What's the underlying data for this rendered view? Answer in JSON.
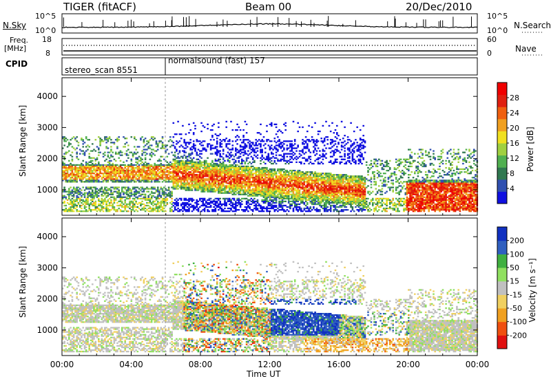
{
  "header": {
    "radar": "TIGER (fitACF)",
    "beam": "Beam 00",
    "date": "20/Dec/2010"
  },
  "status_panels": {
    "nsky_label": "N.Sky",
    "nsky_ticks": [
      "10^5",
      "10^0"
    ],
    "nsearch_ticks": [
      "10^5",
      "10^0"
    ],
    "nsearch_label": "N.Search",
    "freq_label_1": "Freq.",
    "freq_label_2": "[MHz]",
    "freq_ticks": [
      "18",
      "8"
    ],
    "nave_ticks": [
      "60",
      "0"
    ],
    "nave_label": "Nave",
    "cpid_label": "CPID",
    "cpid_segments": [
      {
        "name": "stereo_scan",
        "id": "8551",
        "start": 0,
        "end": 6
      },
      {
        "name": "normalsound (fast)",
        "id": "157",
        "start": 6,
        "end": 24
      }
    ]
  },
  "chart_data": [
    {
      "type": "heatmap",
      "title": "",
      "xlabel": "Time UT",
      "ylabel": "Slant Range [km]",
      "xlim": [
        0,
        24
      ],
      "ylim": [
        180,
        4600
      ],
      "x_ticks": [
        "00:00",
        "04:00",
        "08:00",
        "12:00",
        "16:00",
        "20:00",
        "00:00"
      ],
      "y_ticks": [
        1000,
        2000,
        3000,
        4000
      ],
      "colorbar": {
        "label": "Power [dB]",
        "ticks": [
          4,
          8,
          12,
          16,
          20,
          24,
          28
        ],
        "range": [
          0,
          30
        ],
        "colors": [
          "#1010e0",
          "#3050b0",
          "#307850",
          "#50b050",
          "#a0d040",
          "#f0e020",
          "#f0a020",
          "#f06010",
          "#e02010",
          "#f00000"
        ]
      },
      "description_bands": [
        {
          "t0": 0,
          "t1": 6,
          "r0": 1200,
          "r1": 1800,
          "level": "medium"
        },
        {
          "t0": 6,
          "t1": 17,
          "r0": 700,
          "r1": 1800,
          "level": "high"
        },
        {
          "t0": 20,
          "t1": 24,
          "r0": 300,
          "r1": 1300,
          "level": "high"
        }
      ]
    },
    {
      "type": "heatmap",
      "title": "",
      "xlabel": "Time UT",
      "ylabel": "Slant Range [km]",
      "xlim": [
        0,
        24
      ],
      "ylim": [
        180,
        4600
      ],
      "x_ticks": [
        "00:00",
        "04:00",
        "08:00",
        "12:00",
        "16:00",
        "20:00",
        "00:00"
      ],
      "y_ticks": [
        1000,
        2000,
        3000,
        4000
      ],
      "colorbar": {
        "label": "Velocity [m s⁻¹]",
        "ticks": [
          -200,
          -100,
          -50,
          -15,
          15,
          50,
          100,
          200
        ],
        "colors": [
          "#e01010",
          "#f05010",
          "#f0a020",
          "#f0d060",
          "#c0c0c0",
          "#90e060",
          "#40b040",
          "#3060c0",
          "#1030c0"
        ]
      }
    }
  ]
}
